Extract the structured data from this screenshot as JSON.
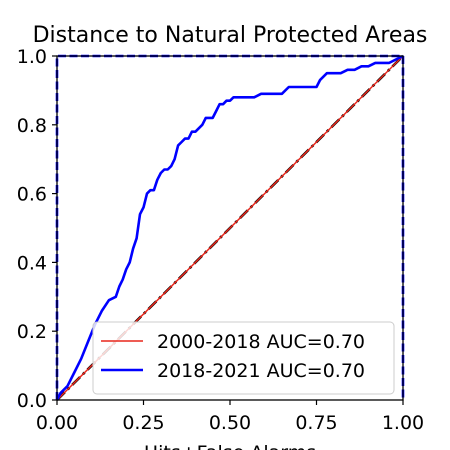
{
  "chart_data": {
    "type": "line",
    "title": "Distance to Natural Protected Areas",
    "xlabel": "Hits+False Alarms",
    "ylabel": "",
    "xlim": [
      0,
      1
    ],
    "ylim": [
      0,
      1
    ],
    "xticks": [
      "0.00",
      "0.25",
      "0.50",
      "0.75",
      "1.00"
    ],
    "yticks": [
      "0.0",
      "0.2",
      "0.4",
      "0.6",
      "0.8",
      "1.0"
    ],
    "grid": false,
    "legend_position": "lower-right",
    "series": [
      {
        "name": "2000-2018 AUC=0.70",
        "color": "#e8271c",
        "style": "solid",
        "x": [
          0,
          1
        ],
        "y": [
          0,
          1
        ]
      },
      {
        "name": "2018-2021 AUC=0.70",
        "color": "#0000ff",
        "style": "solid",
        "x": [
          0.0,
          0.01,
          0.03,
          0.05,
          0.07,
          0.09,
          0.11,
          0.13,
          0.15,
          0.17,
          0.18,
          0.19,
          0.2,
          0.21,
          0.22,
          0.23,
          0.24,
          0.25,
          0.26,
          0.27,
          0.28,
          0.29,
          0.3,
          0.31,
          0.32,
          0.33,
          0.34,
          0.35,
          0.36,
          0.37,
          0.38,
          0.39,
          0.4,
          0.41,
          0.42,
          0.43,
          0.44,
          0.45,
          0.46,
          0.47,
          0.48,
          0.49,
          0.5,
          0.51,
          0.52,
          0.53,
          0.55,
          0.57,
          0.59,
          0.61,
          0.63,
          0.65,
          0.67,
          0.69,
          0.71,
          0.73,
          0.75,
          0.76,
          0.78,
          0.8,
          0.82,
          0.84,
          0.86,
          0.88,
          0.9,
          0.92,
          0.94,
          0.96,
          0.98,
          1.0
        ],
        "y": [
          0.0,
          0.02,
          0.04,
          0.08,
          0.12,
          0.17,
          0.22,
          0.26,
          0.29,
          0.3,
          0.33,
          0.35,
          0.38,
          0.4,
          0.44,
          0.47,
          0.54,
          0.56,
          0.6,
          0.61,
          0.61,
          0.64,
          0.66,
          0.67,
          0.67,
          0.68,
          0.7,
          0.74,
          0.75,
          0.76,
          0.76,
          0.78,
          0.78,
          0.79,
          0.8,
          0.82,
          0.82,
          0.82,
          0.84,
          0.86,
          0.86,
          0.87,
          0.87,
          0.88,
          0.88,
          0.88,
          0.88,
          0.88,
          0.89,
          0.89,
          0.89,
          0.89,
          0.91,
          0.91,
          0.91,
          0.91,
          0.91,
          0.93,
          0.95,
          0.95,
          0.95,
          0.96,
          0.96,
          0.97,
          0.97,
          0.98,
          0.98,
          0.98,
          0.99,
          1.0
        ]
      },
      {
        "name": "",
        "color": "#000000",
        "style": "dash-dot",
        "x": [
          0,
          1
        ],
        "y": [
          0,
          1
        ]
      },
      {
        "name": "",
        "color": "#0000ff",
        "style": "dashed",
        "x": [
          0.0,
          0.0,
          1.0,
          1.0
        ],
        "y": [
          0.0,
          1.0,
          1.0,
          0.0
        ]
      }
    ]
  }
}
